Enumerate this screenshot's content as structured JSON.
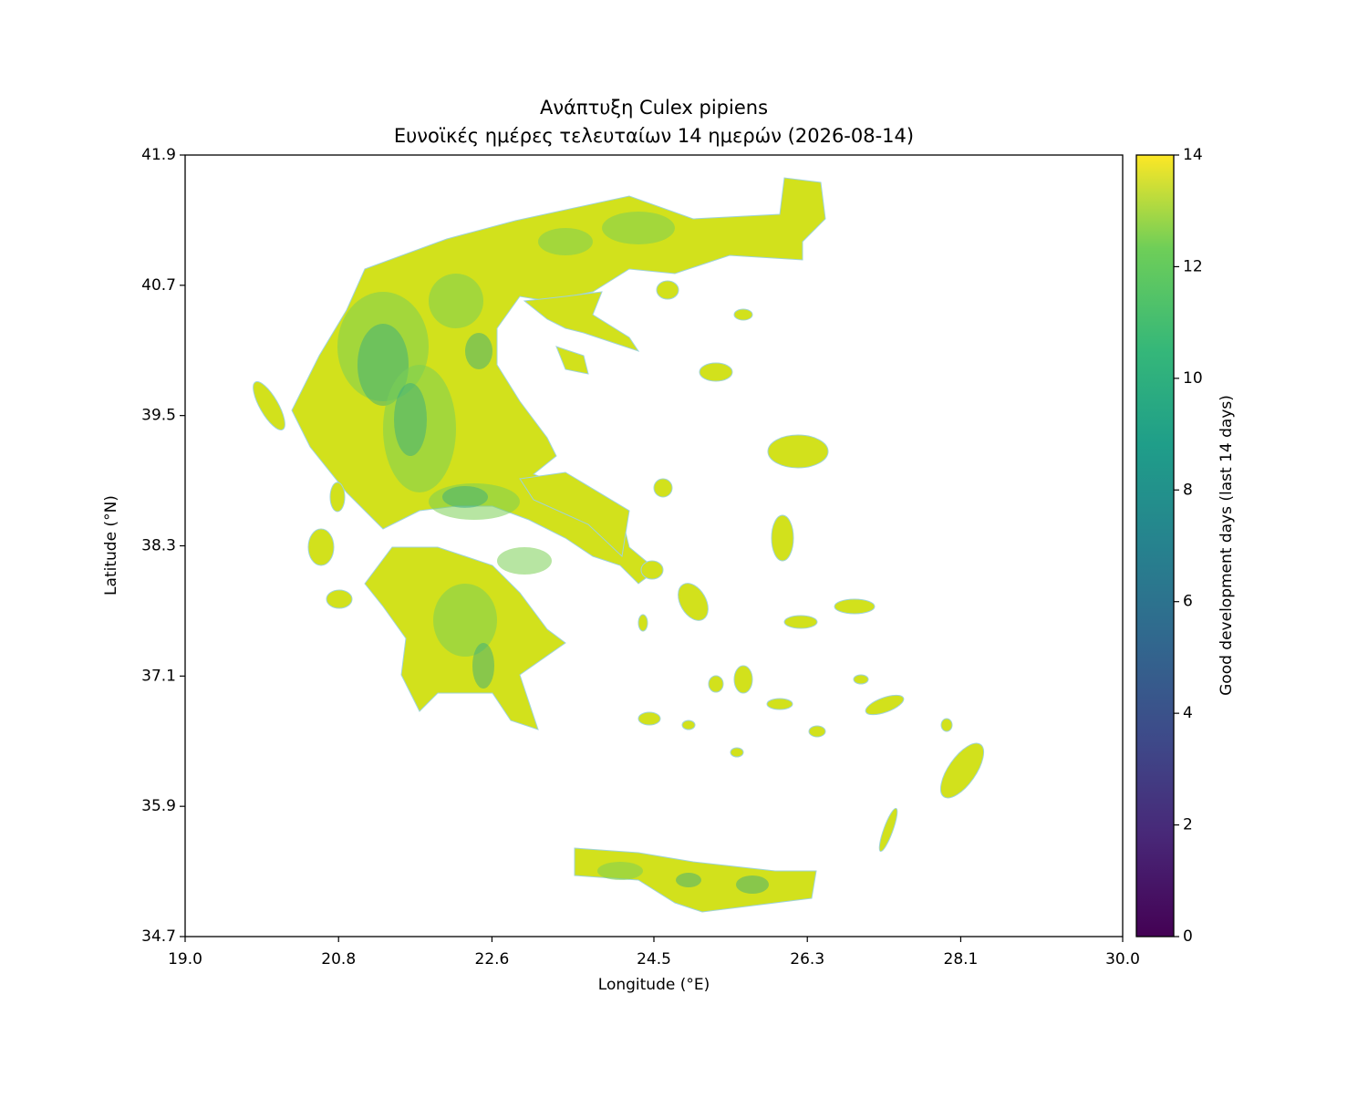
{
  "chart_data": {
    "type": "heatmap",
    "title": "Ανάπτυξη Culex pipiens",
    "subtitle": "Ευνοϊκές ημέρες τελευταίων 14 ημερών (2026-08-14)",
    "x_label": "Longitude (°E)",
    "y_label": "Latitude (°N)",
    "xlim": [
      19,
      30
    ],
    "xticks": [
      {
        "value": 19,
        "label": "19.0"
      },
      20.8,
      22.6,
      24.5,
      26.3,
      28.1,
      {
        "value": 30,
        "label": "30.0"
      }
    ],
    "ylim": [
      34.7,
      41.9
    ],
    "yticks": [
      34.7,
      35.9,
      37.1,
      38.3,
      39.5,
      40.7,
      41.9
    ],
    "colorbar": {
      "label": "Good development days (last 14 days)",
      "colormap": "viridis",
      "clim": [
        0,
        14
      ],
      "ticks": [
        0,
        2,
        4,
        6,
        8,
        10,
        12,
        14
      ]
    }
  }
}
